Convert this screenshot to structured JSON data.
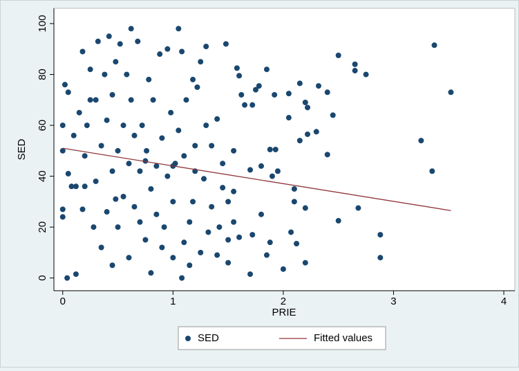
{
  "chart_data": {
    "type": "scatter",
    "xlabel": "PRIE",
    "ylabel": "SED",
    "xlim": [
      -0.08,
      4.1
    ],
    "ylim": [
      -5,
      106
    ],
    "xticks": [
      0,
      1,
      2,
      3,
      4
    ],
    "yticks": [
      0,
      20,
      40,
      60,
      80,
      100
    ],
    "grid": false,
    "legend": "bottom",
    "series": [
      {
        "name": "SED",
        "type": "scatter",
        "color": "#1a476f",
        "x": [
          3.37,
          3.52,
          3.25,
          3.35,
          2.88,
          2.88,
          2.68,
          2.75,
          2.65,
          2.65,
          2.5,
          2.5,
          2.45,
          2.4,
          2.4,
          2.32,
          2.3,
          2.22,
          2.2,
          2.22,
          2.15,
          2.15,
          2.2,
          2.12,
          2.1,
          2.1,
          2.2,
          2.07,
          2.05,
          2.05,
          2.0,
          1.95,
          1.93,
          1.92,
          1.88,
          1.9,
          1.85,
          1.88,
          1.85,
          1.8,
          1.8,
          1.78,
          1.75,
          1.72,
          1.7,
          1.72,
          1.7,
          1.65,
          1.62,
          1.6,
          1.58,
          1.55,
          1.55,
          1.55,
          1.5,
          1.5,
          1.5,
          1.48,
          1.45,
          1.45,
          1.42,
          1.4,
          1.4,
          1.35,
          1.35,
          1.32,
          1.3,
          1.3,
          1.28,
          1.25,
          1.25,
          1.22,
          1.2,
          1.2,
          1.18,
          1.15,
          1.15,
          1.12,
          1.1,
          1.1,
          1.08,
          1.08,
          1.05,
          1.05,
          1.02,
          1.0,
          1.0,
          0.98,
          0.95,
          0.95,
          0.92,
          0.9,
          0.9,
          0.88,
          0.85,
          0.85,
          0.82,
          0.8,
          0.8,
          0.78,
          0.76,
          0.75,
          0.72,
          0.7,
          0.7,
          0.68,
          0.65,
          0.65,
          0.62,
          0.62,
          0.6,
          0.6,
          0.58,
          0.55,
          0.55,
          0.52,
          0.5,
          0.5,
          0.48,
          0.45,
          0.45,
          0.45,
          0.42,
          0.4,
          0.4,
          0.38,
          0.35,
          0.35,
          0.32,
          0.3,
          0.3,
          0.28,
          0.25,
          0.22,
          0.2,
          0.18,
          0.18,
          0.15,
          0.12,
          0.12,
          0.1,
          0.05,
          0.05,
          0.04,
          0.02,
          0.0,
          0.0,
          0.0,
          0.0,
          0.08,
          0.2,
          0.48,
          0.25,
          1.18,
          1.6,
          1.0,
          0.75
        ],
        "values": [
          91.5,
          73,
          54,
          42,
          17,
          8,
          27.5,
          80,
          84,
          81.5,
          87.5,
          22.5,
          64,
          73,
          48.5,
          75.5,
          57.5,
          56.5,
          69,
          67,
          76.5,
          54,
          27.5,
          13.5,
          35,
          30,
          6,
          18,
          72.5,
          63,
          3.5,
          42,
          50.5,
          72,
          50.5,
          40,
          82,
          14,
          9,
          44,
          25,
          75.5,
          74,
          68,
          42.5,
          17,
          1.5,
          68,
          72,
          79.5,
          82.5,
          50,
          34,
          22,
          30,
          15,
          6,
          92,
          45,
          35.5,
          20,
          62.5,
          9,
          52,
          28,
          18,
          91,
          60,
          39,
          10,
          85,
          75,
          52,
          42,
          30,
          22,
          5,
          70,
          48,
          14,
          89,
          0,
          98,
          58,
          45,
          30,
          8,
          65,
          90,
          40,
          20,
          55,
          12,
          88,
          44,
          25,
          70,
          35,
          2,
          78,
          50,
          15,
          60,
          42,
          22,
          93,
          56,
          28,
          98,
          70,
          45,
          8,
          80,
          60,
          32,
          92,
          50,
          20,
          85,
          72,
          42,
          5,
          95,
          62,
          26,
          80,
          52,
          12,
          93,
          70,
          38,
          20,
          82,
          60,
          48,
          89,
          27,
          65,
          36,
          1.5,
          56,
          73,
          41,
          0,
          76,
          60,
          50,
          27,
          24,
          36,
          36,
          31,
          70,
          78,
          16,
          44,
          46
        ]
      },
      {
        "name": "Fitted values",
        "type": "line",
        "color": "#90353b",
        "x": [
          0,
          3.52
        ],
        "values": [
          51,
          26.5
        ]
      }
    ]
  }
}
